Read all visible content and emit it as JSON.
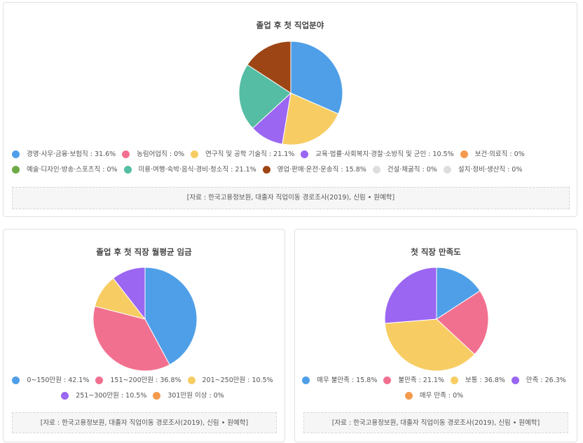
{
  "chart_data": [
    {
      "type": "pie",
      "title": "졸업 후 첫 직업분야",
      "labels": [
        "경영·사무·금융·보험직",
        "농림어업직",
        "연구직 및 공학 기술직",
        "교육·법률·사회복지·경찰·소방직 및 군인",
        "보건·의료직",
        "예술·디자인·방송·스포츠직",
        "미용·여행·숙박·음식·경비·청소직",
        "영업·판매·운전·운송직",
        "건설·채굴직",
        "설치·정비·생산직"
      ],
      "values": [
        31.6,
        0,
        21.1,
        10.5,
        0,
        0,
        21.1,
        15.8,
        0,
        0
      ],
      "colors": [
        "#4f9fe8",
        "#f2708f",
        "#f7cd63",
        "#9a66f2",
        "#f49a4e",
        "#6eaa46",
        "#55bda3",
        "#9e4515",
        "#dedede",
        "#dedede"
      ],
      "legend": [
        "경영·사무·금융·보험직 : 31.6%",
        "농림어업직 : 0%",
        "연구직 및 공학 기술직 : 21.1%",
        "교육·법률·사회복지·경찰·소방직 및 군인 : 10.5%",
        "보건·의료직 : 0%",
        "예술·디자인·방송·스포츠직 : 0%",
        "미용·여행·숙박·음식·경비·청소직 : 21.1%",
        "영업·판매·운전·운송직 : 15.8%",
        "건설·채굴직 : 0%",
        "설치·정비·생산직 : 0%"
      ],
      "source": "[자료 : 한국고용정보원, 대졸자 직업이동 경로조사(2019), 신림 • 원예학]"
    },
    {
      "type": "pie",
      "title": "졸업 후 첫 직장 월평균 임금",
      "labels": [
        "0~150만원",
        "151~200만원",
        "201~250만원",
        "251~300만원",
        "301만원 이상"
      ],
      "values": [
        42.1,
        36.8,
        10.5,
        10.5,
        0
      ],
      "colors": [
        "#4f9fe8",
        "#f2708f",
        "#f7cd63",
        "#9a66f2",
        "#f49a4e"
      ],
      "legend": [
        "0~150만원 : 42.1%",
        "151~200만원 : 36.8%",
        "201~250만원 : 10.5%",
        "251~300만원 : 10.5%",
        "301만원 이상 : 0%"
      ],
      "source": "[자료 : 한국고용정보원, 대졸자 직업이동 경로조사(2019), 신림 • 원예학]"
    },
    {
      "type": "pie",
      "title": "첫 직장 만족도",
      "labels": [
        "매우 불만족",
        "불만족",
        "보통",
        "만족",
        "매우 만족"
      ],
      "values": [
        15.8,
        21.1,
        36.8,
        26.3,
        0
      ],
      "colors": [
        "#4f9fe8",
        "#f2708f",
        "#f7cd63",
        "#9a66f2",
        "#f49a4e"
      ],
      "legend": [
        "매우 불만족 : 15.8%",
        "불만족 : 21.1%",
        "보통 : 36.8%",
        "만족 : 26.3%",
        "매우 만족 : 0%"
      ],
      "source": "[자료 : 한국고용정보원, 대졸자 직업이동 경로조사(2019), 신림 • 원예학]"
    }
  ]
}
